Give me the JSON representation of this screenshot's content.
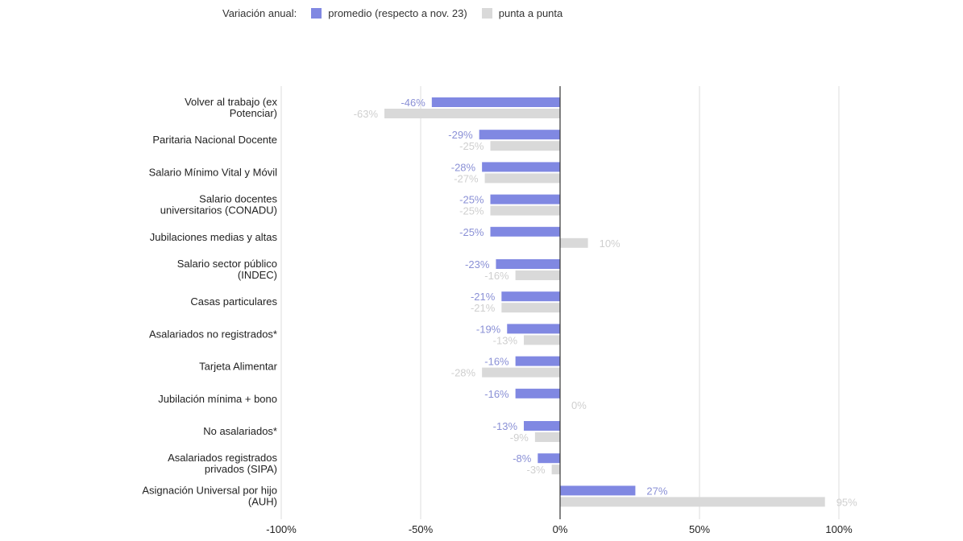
{
  "chart_data": {
    "type": "bar",
    "orientation": "horizontal",
    "legend_title": "Variación anual:",
    "legend_placement": "top",
    "categories": [
      [
        "Volver al trabajo (ex",
        "Potenciar)"
      ],
      [
        "Paritaria Nacional Docente"
      ],
      [
        "Salario Mínimo Vital y Móvil"
      ],
      [
        "Salario docentes",
        "universitarios (CONADU)"
      ],
      [
        "Jubilaciones medias y altas"
      ],
      [
        "Salario sector público",
        "(INDEC)"
      ],
      [
        "Casas particulares"
      ],
      [
        "Asalariados no registrados*"
      ],
      [
        "Tarjeta Alimentar"
      ],
      [
        "Jubilación mínima + bono"
      ],
      [
        "No asalariados*"
      ],
      [
        "Asalariados registrados",
        "privados (SIPA)"
      ],
      [
        "Asignación Universal por hijo",
        "(AUH)"
      ]
    ],
    "series": [
      {
        "name": "promedio (respecto a nov. 23)",
        "color": "#8088e2",
        "label_color": "#8a90d6",
        "values": [
          -46,
          -29,
          -28,
          -25,
          -25,
          -23,
          -21,
          -19,
          -16,
          -16,
          -13,
          -8,
          27
        ]
      },
      {
        "name": "punta a punta",
        "color": "#d9d9d9",
        "label_color": "#cfcfcf",
        "values": [
          -63,
          -25,
          -27,
          -25,
          10,
          -16,
          -21,
          -13,
          -28,
          0,
          -9,
          -3,
          95
        ]
      }
    ],
    "xlim": [
      -100,
      100
    ],
    "xticks": [
      -100,
      -50,
      0,
      50,
      100
    ],
    "xtick_labels": [
      "-100%",
      "-50%",
      "0%",
      "50%",
      "100%"
    ],
    "grid": true
  }
}
